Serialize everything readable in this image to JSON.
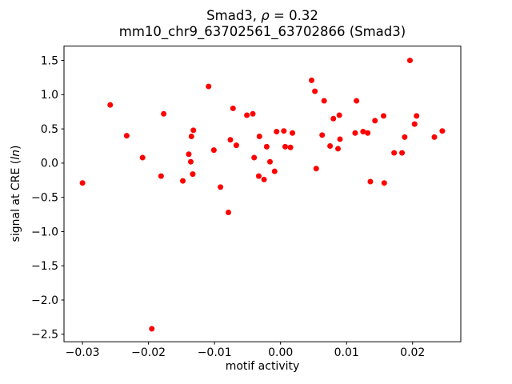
{
  "figure": {
    "background_color": "#ffffff",
    "axes_color": "#000000"
  },
  "title": {
    "line1_prefix": "Smad3, ",
    "line1_rho": "ρ",
    "line1_suffix": " = 0.32",
    "line2": "mm10_chr9_63702561_63702866 (Smad3)"
  },
  "ylabel_parts": {
    "prefix": "signal at CRE (",
    "italic": "ln",
    "suffix": ")"
  },
  "chart_data": {
    "type": "scatter",
    "title": "Smad3, ρ = 0.32",
    "subtitle": "mm10_chr9_63702561_63702866 (Smad3)",
    "xlabel": "motif activity",
    "ylabel": "signal at CRE (ln)",
    "xlim": [
      -0.0328,
      0.0273
    ],
    "ylim": [
      -2.61,
      1.71
    ],
    "x_ticks": [
      -0.03,
      -0.02,
      -0.01,
      0.0,
      0.01,
      0.02
    ],
    "x_tick_labels": [
      "−0.03",
      "−0.02",
      "−0.01",
      "0.00",
      "0.01",
      "0.02"
    ],
    "y_ticks": [
      1.5,
      1.0,
      0.5,
      0.0,
      -0.5,
      -1.0,
      -1.5,
      -2.0,
      -2.5
    ],
    "y_tick_labels": [
      "1.5",
      "1.0",
      "0.5",
      "0.0",
      "−0.5",
      "−1.0",
      "−1.5",
      "−2.0",
      "−2.5"
    ],
    "grid": false,
    "legend": null,
    "marker_color": "#ff0000",
    "marker_radius_px": 3.5,
    "points": [
      [
        -0.03,
        -0.29
      ],
      [
        -0.0258,
        0.85
      ],
      [
        -0.0233,
        0.4
      ],
      [
        -0.0209,
        0.08
      ],
      [
        -0.0195,
        -2.42
      ],
      [
        -0.0177,
        0.72
      ],
      [
        -0.0181,
        -0.19
      ],
      [
        -0.0148,
        -0.26
      ],
      [
        -0.0132,
        0.48
      ],
      [
        -0.0135,
        0.39
      ],
      [
        -0.0139,
        0.13
      ],
      [
        -0.0136,
        0.02
      ],
      [
        -0.0133,
        -0.16
      ],
      [
        -0.0109,
        1.12
      ],
      [
        -0.0101,
        0.19
      ],
      [
        -0.0091,
        -0.35
      ],
      [
        -0.0079,
        -0.72
      ],
      [
        -0.0072,
        0.8
      ],
      [
        -0.0076,
        0.34
      ],
      [
        -0.0067,
        0.26
      ],
      [
        -0.0051,
        0.7
      ],
      [
        -0.0042,
        0.72
      ],
      [
        -0.004,
        0.08
      ],
      [
        -0.0032,
        0.39
      ],
      [
        -0.0021,
        0.24
      ],
      [
        -0.0033,
        -0.19
      ],
      [
        -0.0025,
        -0.24
      ],
      [
        -0.0016,
        0.02
      ],
      [
        -0.0009,
        -0.12
      ],
      [
        -0.0006,
        0.46
      ],
      [
        0.0005,
        0.47
      ],
      [
        0.0018,
        0.44
      ],
      [
        0.0007,
        0.24
      ],
      [
        0.0015,
        0.23
      ],
      [
        0.0047,
        1.21
      ],
      [
        0.0052,
        1.05
      ],
      [
        0.0066,
        0.91
      ],
      [
        0.0115,
        0.91
      ],
      [
        0.0089,
        0.7
      ],
      [
        0.008,
        0.65
      ],
      [
        0.0063,
        0.41
      ],
      [
        0.009,
        0.35
      ],
      [
        0.0075,
        0.25
      ],
      [
        0.0087,
        0.21
      ],
      [
        0.0054,
        -0.08
      ],
      [
        0.0113,
        0.44
      ],
      [
        0.0125,
        0.46
      ],
      [
        0.0132,
        0.44
      ],
      [
        0.0143,
        0.62
      ],
      [
        0.0156,
        0.69
      ],
      [
        0.0172,
        0.15
      ],
      [
        0.0184,
        0.15
      ],
      [
        0.0188,
        0.38
      ],
      [
        0.0203,
        0.57
      ],
      [
        0.0206,
        0.69
      ],
      [
        0.0196,
        1.5
      ],
      [
        0.0233,
        0.38
      ],
      [
        0.0245,
        0.47
      ],
      [
        0.0136,
        -0.27
      ],
      [
        0.0157,
        -0.29
      ]
    ]
  }
}
